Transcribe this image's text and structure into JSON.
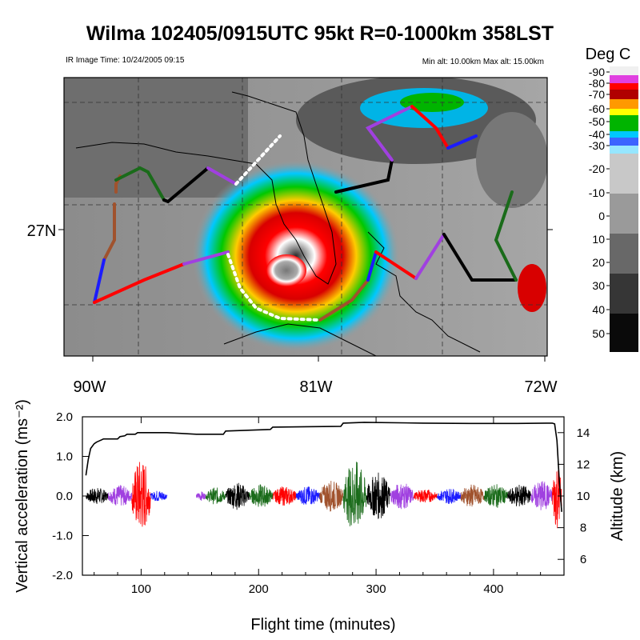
{
  "title": "Wilma 102405/0915UTC 95kt  R=0-1000km 358LST",
  "map": {
    "ir_time": "IR Image Time: 10/24/2005 09:15",
    "alt_range": "Min alt: 10.00km  Max alt: 15.00km",
    "lat_label": "27N",
    "lon_labels": [
      "90W",
      "81W",
      "72W"
    ]
  },
  "colorbar": {
    "title": "Deg C",
    "labels": [
      "-90",
      "-80",
      "-70",
      "-60",
      "-50",
      "-40",
      "-30",
      "-20",
      "-10",
      "0",
      "10",
      "20",
      "30",
      "40",
      "50"
    ]
  },
  "colors": {
    "black": "#000000",
    "purple": "#a040e0",
    "red": "#ff0000",
    "blue": "#1c1cff",
    "brown": "#a0522d",
    "green": "#1a6b1a"
  },
  "chart_data": {
    "type": "line",
    "xlabel": "Flight time (minutes)",
    "ylabel_left": "Vertical acceleration (ms⁻²)",
    "ylabel_right": "Altitude (km)",
    "xlim": [
      50,
      460
    ],
    "ylim_left": [
      -2.0,
      2.0
    ],
    "ylim_right": [
      5,
      15
    ],
    "x_ticks": [
      100,
      200,
      300,
      400
    ],
    "y_left_ticks": [
      "2.0",
      "1.0",
      "0.0",
      "-1.0",
      "-2.0"
    ],
    "y_right_ticks": [
      "6",
      "8",
      "10",
      "12",
      "14"
    ],
    "series": [
      {
        "name": "",
        "axis": "right",
        "x": [
          53,
          55,
          57,
          60,
          62,
          65,
          68,
          80,
          82,
          86,
          88,
          95,
          97,
          122,
          147,
          170,
          172,
          210,
          212,
          270,
          272,
          290,
          340,
          380,
          420,
          445,
          450,
          452,
          454,
          456,
          458
        ],
        "y": [
          11.3,
          12.3,
          13.0,
          13.3,
          13.4,
          13.5,
          13.6,
          13.6,
          13.75,
          13.8,
          13.9,
          13.9,
          14.0,
          14.0,
          13.9,
          13.9,
          14.1,
          14.2,
          14.35,
          14.4,
          14.6,
          14.65,
          14.6,
          14.58,
          14.58,
          14.6,
          14.6,
          14.55,
          13.5,
          11.0,
          9.0
        ]
      }
    ],
    "acceleration_segments": [
      {
        "color": "black",
        "x_start": 53,
        "x_end": 72,
        "amplitude": 0.22
      },
      {
        "color": "purple",
        "x_start": 72,
        "x_end": 92,
        "amplitude": 0.28
      },
      {
        "color": "red",
        "x_start": 92,
        "x_end": 108,
        "amplitude": 0.95
      },
      {
        "color": "blue",
        "x_start": 108,
        "x_end": 122,
        "amplitude": 0.15
      },
      {
        "color": "purple",
        "x_start": 147,
        "x_end": 155,
        "amplitude": 0.12
      },
      {
        "color": "green",
        "x_start": 155,
        "x_end": 172,
        "amplitude": 0.22
      },
      {
        "color": "black",
        "x_start": 172,
        "x_end": 192,
        "amplitude": 0.35
      },
      {
        "color": "green",
        "x_start": 192,
        "x_end": 212,
        "amplitude": 0.3
      },
      {
        "color": "red",
        "x_start": 212,
        "x_end": 232,
        "amplitude": 0.25
      },
      {
        "color": "blue",
        "x_start": 232,
        "x_end": 252,
        "amplitude": 0.25
      },
      {
        "color": "brown",
        "x_start": 252,
        "x_end": 272,
        "amplitude": 0.4
      },
      {
        "color": "green",
        "x_start": 272,
        "x_end": 292,
        "amplitude": 0.9
      },
      {
        "color": "black",
        "x_start": 292,
        "x_end": 312,
        "amplitude": 0.6
      },
      {
        "color": "purple",
        "x_start": 312,
        "x_end": 332,
        "amplitude": 0.35
      },
      {
        "color": "red",
        "x_start": 332,
        "x_end": 352,
        "amplitude": 0.18
      },
      {
        "color": "blue",
        "x_start": 352,
        "x_end": 372,
        "amplitude": 0.2
      },
      {
        "color": "brown",
        "x_start": 372,
        "x_end": 392,
        "amplitude": 0.3
      },
      {
        "color": "green",
        "x_start": 392,
        "x_end": 412,
        "amplitude": 0.3
      },
      {
        "color": "black",
        "x_start": 412,
        "x_end": 432,
        "amplitude": 0.3
      },
      {
        "color": "purple",
        "x_start": 432,
        "x_end": 450,
        "amplitude": 0.4
      },
      {
        "color": "red",
        "x_start": 450,
        "x_end": 458,
        "amplitude": 0.85
      }
    ]
  }
}
